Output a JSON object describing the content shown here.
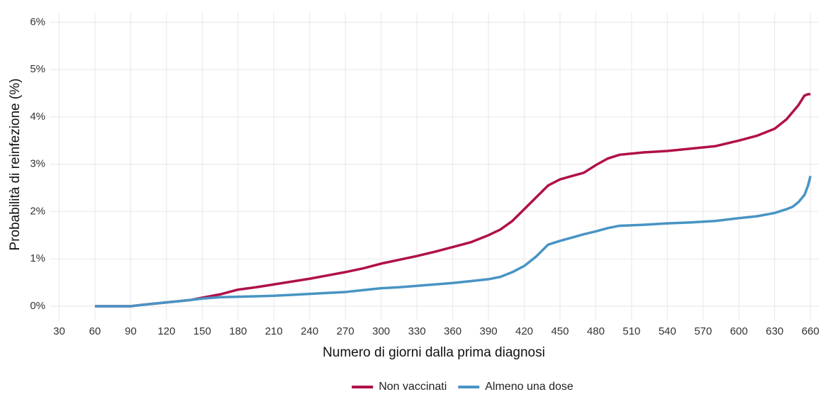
{
  "chart_data": {
    "type": "line",
    "x_label": "Numero di giorni dalla prima diagnosi",
    "y_label": "Probabilità di reinfezione (%)",
    "x": [
      60,
      90,
      100,
      120,
      140,
      150,
      165,
      180,
      195,
      210,
      225,
      240,
      255,
      270,
      285,
      300,
      315,
      330,
      345,
      360,
      375,
      390,
      400,
      410,
      420,
      430,
      440,
      450,
      460,
      470,
      480,
      490,
      500,
      520,
      540,
      560,
      580,
      600,
      615,
      630,
      640,
      645,
      650,
      655,
      658,
      660
    ],
    "series": [
      {
        "name": "Non vaccinati",
        "color": "#b0104a",
        "values": [
          0,
          0,
          0.03,
          0.08,
          0.13,
          0.18,
          0.25,
          0.35,
          0.4,
          0.46,
          0.52,
          0.58,
          0.65,
          0.72,
          0.8,
          0.9,
          0.98,
          1.06,
          1.15,
          1.25,
          1.35,
          1.5,
          1.62,
          1.8,
          2.05,
          2.3,
          2.55,
          2.68,
          2.75,
          2.82,
          2.98,
          3.12,
          3.2,
          3.25,
          3.28,
          3.33,
          3.38,
          3.5,
          3.6,
          3.75,
          3.95,
          4.1,
          4.25,
          4.45,
          4.48,
          4.48
        ]
      },
      {
        "name": "Almeno una dose",
        "color": "#4894c4",
        "values": [
          0,
          0,
          0.03,
          0.08,
          0.13,
          0.16,
          0.19,
          0.2,
          0.21,
          0.22,
          0.24,
          0.26,
          0.28,
          0.3,
          0.34,
          0.38,
          0.4,
          0.43,
          0.46,
          0.49,
          0.53,
          0.57,
          0.62,
          0.72,
          0.85,
          1.05,
          1.3,
          1.38,
          1.45,
          1.52,
          1.58,
          1.65,
          1.7,
          1.72,
          1.75,
          1.77,
          1.8,
          1.86,
          1.9,
          1.97,
          2.05,
          2.1,
          2.2,
          2.35,
          2.55,
          2.75
        ]
      }
    ],
    "xlim": [
      22,
      667
    ],
    "ylim": [
      -0.3,
      6.2
    ],
    "xticks": [
      30,
      60,
      90,
      120,
      150,
      180,
      210,
      240,
      270,
      300,
      330,
      360,
      390,
      420,
      450,
      480,
      510,
      540,
      570,
      600,
      630,
      660
    ],
    "yticks": [
      {
        "value": 0,
        "label": "0%"
      },
      {
        "value": 1,
        "label": "1%"
      },
      {
        "value": 2,
        "label": "2%"
      },
      {
        "value": 3,
        "label": "3%"
      },
      {
        "value": 4,
        "label": "4%"
      },
      {
        "value": 5,
        "label": "5%"
      },
      {
        "value": 6,
        "label": "6%"
      }
    ],
    "grid": true,
    "legend": "bottom"
  }
}
